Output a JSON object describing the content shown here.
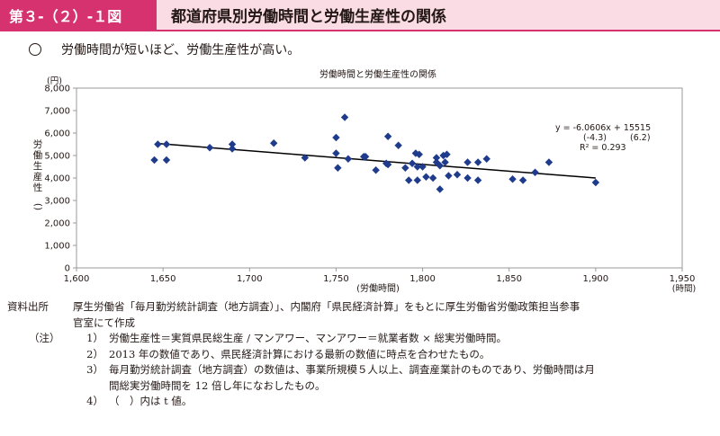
{
  "header": {
    "figure_label": "第３-（２）-１図",
    "figure_title": "都道府県別労働時間と労働生産性の関係"
  },
  "lead": {
    "text": "労働時間が短いほど、労働生産性が高い。"
  },
  "chart_data": {
    "type": "scatter",
    "title": "労働時間と労働生産性の関係",
    "xlabel": "(労働時間)",
    "x_unit": "(時間)",
    "ylabel": "労働生産性",
    "y_unit": "(円)",
    "xlim": [
      1600,
      1950
    ],
    "ylim": [
      0,
      8000
    ],
    "x_ticks": [
      "1,600",
      "1,650",
      "1,700",
      "1,750",
      "1,800",
      "1,850",
      "1,900",
      "1,950"
    ],
    "y_ticks": [
      "0",
      "1,000",
      "2,000",
      "3,000",
      "4,000",
      "5,000",
      "6,000",
      "7,000",
      "8,000"
    ],
    "grid": false,
    "marker_color": "#1f3b8c",
    "points": [
      {
        "x": 1645,
        "y": 4800
      },
      {
        "x": 1647,
        "y": 5500
      },
      {
        "x": 1652,
        "y": 5500
      },
      {
        "x": 1652,
        "y": 4800
      },
      {
        "x": 1677,
        "y": 5350
      },
      {
        "x": 1690,
        "y": 5300
      },
      {
        "x": 1690,
        "y": 5500
      },
      {
        "x": 1714,
        "y": 5550
      },
      {
        "x": 1732,
        "y": 4900
      },
      {
        "x": 1750,
        "y": 5800
      },
      {
        "x": 1750,
        "y": 5100
      },
      {
        "x": 1751,
        "y": 4450
      },
      {
        "x": 1755,
        "y": 6700
      },
      {
        "x": 1757,
        "y": 4850
      },
      {
        "x": 1766,
        "y": 4950
      },
      {
        "x": 1767,
        "y": 4950
      },
      {
        "x": 1773,
        "y": 4350
      },
      {
        "x": 1779,
        "y": 4650
      },
      {
        "x": 1780,
        "y": 5850
      },
      {
        "x": 1780,
        "y": 4600
      },
      {
        "x": 1786,
        "y": 5450
      },
      {
        "x": 1790,
        "y": 4450
      },
      {
        "x": 1792,
        "y": 3900
      },
      {
        "x": 1794,
        "y": 4650
      },
      {
        "x": 1796,
        "y": 5100
      },
      {
        "x": 1797,
        "y": 4500
      },
      {
        "x": 1797,
        "y": 3900
      },
      {
        "x": 1798,
        "y": 5050
      },
      {
        "x": 1800,
        "y": 4500
      },
      {
        "x": 1802,
        "y": 4050
      },
      {
        "x": 1806,
        "y": 4000
      },
      {
        "x": 1808,
        "y": 4700
      },
      {
        "x": 1808,
        "y": 4900
      },
      {
        "x": 1810,
        "y": 4550
      },
      {
        "x": 1810,
        "y": 3500
      },
      {
        "x": 1812,
        "y": 5000
      },
      {
        "x": 1813,
        "y": 4700
      },
      {
        "x": 1814,
        "y": 5050
      },
      {
        "x": 1815,
        "y": 4100
      },
      {
        "x": 1820,
        "y": 4150
      },
      {
        "x": 1826,
        "y": 4700
      },
      {
        "x": 1826,
        "y": 4000
      },
      {
        "x": 1832,
        "y": 4700
      },
      {
        "x": 1832,
        "y": 3900
      },
      {
        "x": 1837,
        "y": 4850
      },
      {
        "x": 1852,
        "y": 3950
      },
      {
        "x": 1858,
        "y": 3900
      },
      {
        "x": 1865,
        "y": 4250
      },
      {
        "x": 1873,
        "y": 4700
      },
      {
        "x": 1900,
        "y": 3800
      }
    ],
    "trendline": {
      "slope": -6.0606,
      "intercept": 15515,
      "x_range": [
        1647,
        1900
      ]
    },
    "annotation": {
      "equation": "y = -6.0606x + 15515",
      "t1": "(-4.3)",
      "t2": "(6.2)",
      "r2": "R² = 0.293"
    }
  },
  "notes": {
    "source_label": "資料出所",
    "source_line1": "厚生労働省「毎月勤労統計調査（地方調査）」、内閣府「県民経済計算」をもとに厚生労働省労働政策担当参事",
    "source_line2": "官室にて作成",
    "note_label": "（注）",
    "items": [
      {
        "num": "1）",
        "text": "労働生産性＝実質県民総生産 / マンアワー、マンアワー＝就業者数 × 総実労働時間。"
      },
      {
        "num": "2）",
        "text": "2013 年の数値であり、県民経済計算における最新の数値に時点を合わせたもの。"
      },
      {
        "num": "3）",
        "text": "毎月勤労統計調査（地方調査）の数値は、事業所規模５人以上、調査産業計のものであり、労働時間は月"
      },
      {
        "num": "4）",
        "text": "（　）内は t 値。"
      }
    ],
    "item3_cont": "間総実労働時間を 12 倍し年になおしたもの。"
  }
}
